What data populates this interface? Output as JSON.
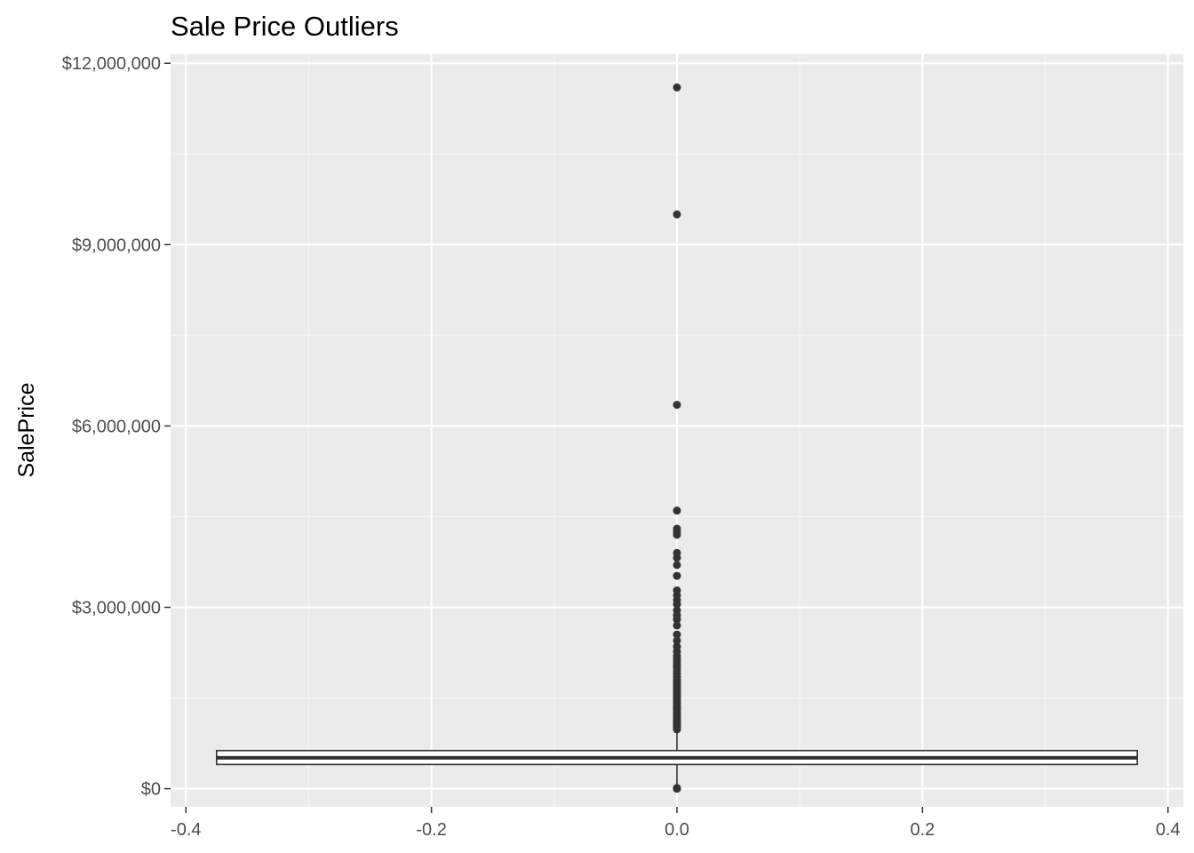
{
  "chart_data": {
    "type": "boxplot",
    "title": "Sale Price Outliers",
    "xlabel": "",
    "ylabel": "SalePrice",
    "xlim": [
      -0.4125,
      0.4125
    ],
    "ylim": [
      -300000,
      12150000
    ],
    "x_ticks": [
      -0.4,
      -0.2,
      0.0,
      0.2,
      0.4
    ],
    "x_tick_labels": [
      "-0.4",
      "-0.2",
      "0.0",
      "0.2",
      "0.4"
    ],
    "y_ticks": [
      0,
      3000000,
      6000000,
      9000000,
      12000000
    ],
    "y_tick_labels": [
      "$0",
      "$3,000,000",
      "$6,000,000",
      "$9,000,000",
      "$12,000,000"
    ],
    "grid": true,
    "legend": "none",
    "box": {
      "x": 0.0,
      "width": 0.75,
      "q1": 400000,
      "median": 510000,
      "q3": 630000,
      "whisker_low": 10,
      "whisker_high": 970000,
      "outliers": [
        0,
        10,
        12000,
        980000,
        1000000,
        1020000,
        1050000,
        1080000,
        1100000,
        1120000,
        1150000,
        1180000,
        1200000,
        1230000,
        1260000,
        1300000,
        1330000,
        1360000,
        1400000,
        1430000,
        1460000,
        1500000,
        1530000,
        1560000,
        1600000,
        1640000,
        1680000,
        1720000,
        1760000,
        1800000,
        1850000,
        1900000,
        1950000,
        2000000,
        2050000,
        2100000,
        2150000,
        2200000,
        2270000,
        2350000,
        2450000,
        2550000,
        2700000,
        2800000,
        2870000,
        2950000,
        3050000,
        3120000,
        3200000,
        3280000,
        3520000,
        3700000,
        3820000,
        3900000,
        4200000,
        4250000,
        4300000,
        4600000,
        6350000,
        9500000,
        11600000
      ]
    },
    "colors": {
      "panel_background": "#ebebeb",
      "grid_major": "#ffffff",
      "grid_minor": "#f5f5f5",
      "box_line": "#333333",
      "box_fill": "#ffffff",
      "outlier": "#333333",
      "tick_text": "#4d4d4d"
    }
  }
}
